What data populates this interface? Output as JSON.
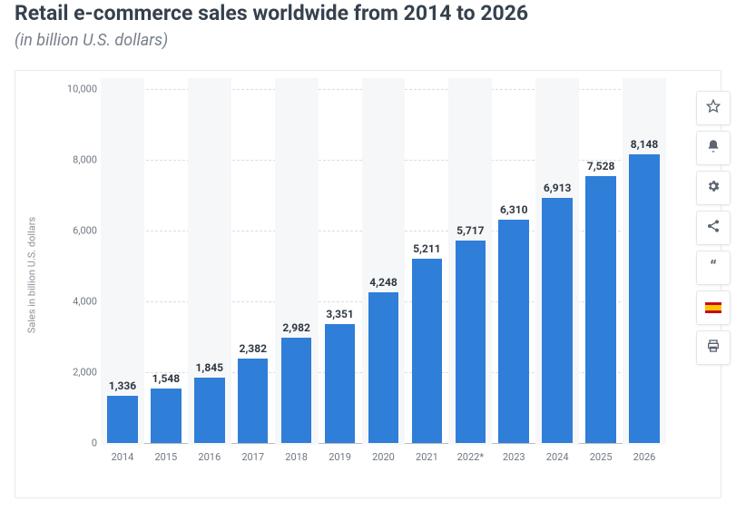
{
  "header": {
    "title": "Retail e-commerce sales worldwide from 2014 to 2026",
    "subtitle": "(in billion U.S. dollars)"
  },
  "chart": {
    "type": "bar",
    "y_axis_label": "Sales in billion U.S. dollars",
    "ylim": [
      0,
      10000
    ],
    "ytick_step": 2000,
    "y_ticks": [
      {
        "value": 0,
        "label": "0"
      },
      {
        "value": 2000,
        "label": "2,000"
      },
      {
        "value": 4000,
        "label": "4,000"
      },
      {
        "value": 6000,
        "label": "6,000"
      },
      {
        "value": 8000,
        "label": "8,000"
      },
      {
        "value": 10000,
        "label": "10,000"
      }
    ],
    "categories": [
      "2014",
      "2015",
      "2016",
      "2017",
      "2018",
      "2019",
      "2020",
      "2021",
      "2022*",
      "2023",
      "2024",
      "2025",
      "2026"
    ],
    "values": [
      1336,
      1548,
      1845,
      2382,
      2982,
      3351,
      4248,
      5211,
      5717,
      6310,
      6913,
      7528,
      8148
    ],
    "value_labels": [
      "1,336",
      "1,548",
      "1,845",
      "2,382",
      "2,982",
      "3,351",
      "4,248",
      "5,211",
      "5,717",
      "6,310",
      "6,913",
      "7,528",
      "8,148"
    ],
    "bar_color": "#2f7ed8",
    "bar_width": 0.7,
    "background_color": "#ffffff",
    "stripe_color": "#f6f7f8",
    "grid_color": "#d9dde2",
    "axis_color": "#b7bcc2",
    "value_label_color": "#2f3842",
    "value_label_fontsize": 12,
    "tick_label_color": "#6f7782",
    "tick_label_fontsize": 11,
    "title_fontsize": 23,
    "title_color": "#36414d",
    "subtitle_fontsize": 18,
    "subtitle_color": "#77808a"
  },
  "toolbar": {
    "items": [
      {
        "name": "favorite",
        "icon": "star"
      },
      {
        "name": "alert",
        "icon": "bell"
      },
      {
        "name": "settings",
        "icon": "gear"
      },
      {
        "name": "share",
        "icon": "share"
      },
      {
        "name": "cite",
        "icon": "quote"
      },
      {
        "name": "language",
        "icon": "flag-es"
      },
      {
        "name": "print",
        "icon": "print"
      }
    ]
  }
}
